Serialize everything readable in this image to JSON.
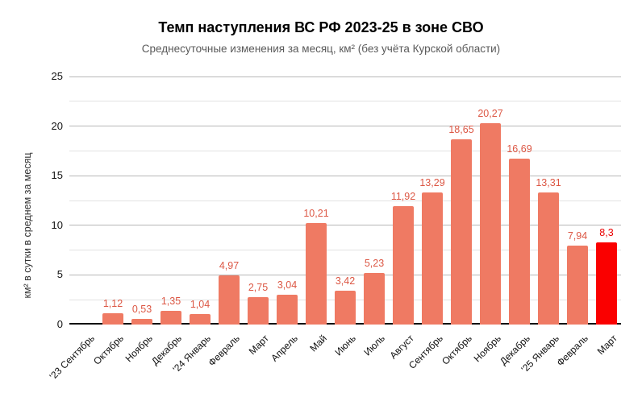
{
  "chart_data": {
    "type": "bar",
    "title": "Темп наступления ВС РФ 2023-25 в зоне СВО",
    "subtitle": "Среднесуточные изменения за месяц, км² (без учёта Курской области)",
    "ylabel": "км² в сутки в среднем за месяц",
    "xlabel": "",
    "ylim": [
      0,
      25
    ],
    "yticks": [
      0,
      5,
      10,
      15,
      20,
      25
    ],
    "minor_gridline_step": 2.5,
    "grid": true,
    "legend": "none",
    "categories": [
      "'23 Сентябрь",
      "Октябрь",
      "Ноябрь",
      "Декабрь",
      "'24 Январь",
      "Февраль",
      "Март",
      "Апрель",
      "Май",
      "Июнь",
      "Июль",
      "Август",
      "Сентябрь",
      "Октябрь",
      "Ноябрь",
      "Декабрь",
      "'25 Январь",
      "Февраль",
      "Март"
    ],
    "values": [
      null,
      1.12,
      0.53,
      1.35,
      1.04,
      4.97,
      2.75,
      3.04,
      10.21,
      3.42,
      5.23,
      11.92,
      13.29,
      18.65,
      20.27,
      16.69,
      13.31,
      7.94,
      8.3
    ],
    "value_labels": [
      "",
      "1,12",
      "0,53",
      "1,35",
      "1,04",
      "4,97",
      "2,75",
      "3,04",
      "10,21",
      "3,42",
      "5,23",
      "11,92",
      "13,29",
      "18,65",
      "20,27",
      "16,69",
      "13,31",
      "7,94",
      "8,3"
    ],
    "highlight_index": 18,
    "colors": {
      "bar": "#ef7a63",
      "bar_highlight": "#fa0000",
      "value_label": "#dc5744",
      "value_label_highlight": "#ea0000",
      "gridline_major": "#b7b7b7",
      "gridline_minor": "#e2e2e2",
      "axis_line": "#000000",
      "tick_text": "#111111",
      "title": "#000000",
      "subtitle": "#5a5a5a"
    }
  }
}
